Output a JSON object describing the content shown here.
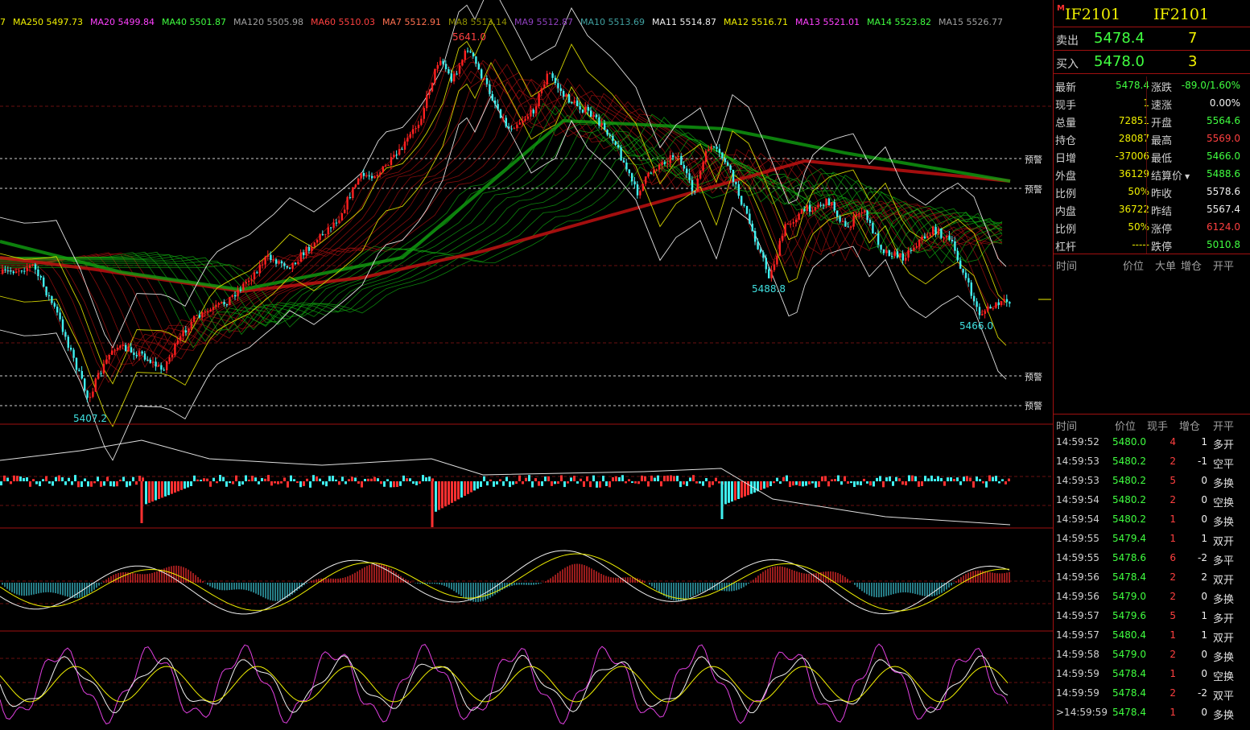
{
  "ma_legend": [
    {
      "label": "7",
      "color": "#f0f000"
    },
    {
      "label": "MA250 5497.73",
      "color": "#f0f000"
    },
    {
      "label": "MA20 5499.84",
      "color": "#ff40ff"
    },
    {
      "label": "MA40 5501.87",
      "color": "#40ff40"
    },
    {
      "label": "MA120 5505.98",
      "color": "#a0a0a0"
    },
    {
      "label": "MA60 5510.03",
      "color": "#ff4040"
    },
    {
      "label": "MA7 5512.91",
      "color": "#ff7050"
    },
    {
      "label": "MA8 5513.14",
      "color": "#909000"
    },
    {
      "label": "MA9 5512.87",
      "color": "#9040c0"
    },
    {
      "label": "MA10 5513.69",
      "color": "#40a0a0"
    },
    {
      "label": "MA11 5514.87",
      "color": "#f0f0f0"
    },
    {
      "label": "MA12 5516.71",
      "color": "#f0f000"
    },
    {
      "label": "MA13 5521.01",
      "color": "#ff40ff"
    },
    {
      "label": "MA14 5523.82",
      "color": "#40ff40"
    },
    {
      "label": "MA15 5526.77",
      "color": "#a0a0a0"
    }
  ],
  "price_labels": {
    "high": "5641.0",
    "low_left": "5407.2",
    "mid_low": "5488.8",
    "right_low": "5466.0"
  },
  "alerts": [
    "预警",
    "预警",
    "预警",
    "预警"
  ],
  "panel": {
    "badge": "M",
    "code_left": "IF2101",
    "code_right": "IF2101",
    "sell_label": "卖出",
    "sell_price": "5478.4",
    "sell_qty": "7",
    "buy_label": "买入",
    "buy_price": "5478.0",
    "buy_qty": "3",
    "sort_arrow": "▼",
    "stats": [
      {
        "l1": "最新",
        "v1": "5478.4",
        "c1": "#40ff40",
        "l2": "涨跌",
        "v2": "-89.0/1.60%",
        "c2": "#40ff40"
      },
      {
        "l1": "现手",
        "v1": "1",
        "c1": "#f0f000",
        "l2": "速涨",
        "v2": "0.00%",
        "c2": "#f0f0f0"
      },
      {
        "l1": "总量",
        "v1": "72851",
        "c1": "#f0f000",
        "l2": "开盘",
        "v2": "5564.6",
        "c2": "#40ff40"
      },
      {
        "l1": "持仓",
        "v1": "28087",
        "c1": "#f0f000",
        "l2": "最高",
        "v2": "5569.0",
        "c2": "#ff4040"
      },
      {
        "l1": "日增",
        "v1": "-37006",
        "c1": "#f0f000",
        "l2": "最低",
        "v2": "5466.0",
        "c2": "#40ff40"
      },
      {
        "l1": "外盘",
        "v1": "36129",
        "c1": "#f0f000",
        "l2": "结算价",
        "v2": "5488.6",
        "c2": "#40ff40"
      },
      {
        "l1": "比例",
        "v1": "50%",
        "c1": "#f0f000",
        "l2": "昨收",
        "v2": "5578.6",
        "c2": "#f0f0f0"
      },
      {
        "l1": "内盘",
        "v1": "36722",
        "c1": "#f0f000",
        "l2": "昨结",
        "v2": "5567.4",
        "c2": "#f0f0f0"
      },
      {
        "l1": "比例",
        "v1": "50%",
        "c1": "#f0f000",
        "l2": "涨停",
        "v2": "6124.0",
        "c2": "#ff4040"
      },
      {
        "l1": "杠杆",
        "v1": "-----",
        "c1": "#f0f000",
        "l2": "跌停",
        "v2": "5010.8",
        "c2": "#40ff40"
      }
    ],
    "big_header": [
      "时间",
      "价位",
      "大单",
      "增仓",
      "开平"
    ],
    "tick_header": [
      "时间",
      "价位",
      "现手",
      "增仓",
      "开平"
    ],
    "ticks": [
      {
        "time": "14:59:52",
        "price": "5480.0",
        "vol": "4",
        "oi": "1",
        "type": "多开"
      },
      {
        "time": "14:59:53",
        "price": "5480.2",
        "vol": "2",
        "oi": "-1",
        "type": "空平"
      },
      {
        "time": "14:59:53",
        "price": "5480.2",
        "vol": "5",
        "oi": "0",
        "type": "多换"
      },
      {
        "time": "14:59:54",
        "price": "5480.2",
        "vol": "2",
        "oi": "0",
        "type": "空换"
      },
      {
        "time": "14:59:54",
        "price": "5480.2",
        "vol": "1",
        "oi": "0",
        "type": "多换"
      },
      {
        "time": "14:59:55",
        "price": "5479.4",
        "vol": "1",
        "oi": "1",
        "type": "双开"
      },
      {
        "time": "14:59:55",
        "price": "5478.6",
        "vol": "6",
        "oi": "-2",
        "type": "多平"
      },
      {
        "time": "14:59:56",
        "price": "5478.4",
        "vol": "2",
        "oi": "2",
        "type": "双开"
      },
      {
        "time": "14:59:56",
        "price": "5479.0",
        "vol": "2",
        "oi": "0",
        "type": "多换"
      },
      {
        "time": "14:59:57",
        "price": "5479.6",
        "vol": "5",
        "oi": "1",
        "type": "多开"
      },
      {
        "time": "14:59:57",
        "price": "5480.4",
        "vol": "1",
        "oi": "1",
        "type": "双开"
      },
      {
        "time": "14:59:58",
        "price": "5479.0",
        "vol": "2",
        "oi": "0",
        "type": "多换"
      },
      {
        "time": "14:59:59",
        "price": "5478.4",
        "vol": "1",
        "oi": "0",
        "type": "空换"
      },
      {
        "time": "14:59:59",
        "price": "5478.4",
        "vol": "2",
        "oi": "-2",
        "type": "双平"
      },
      {
        "time": ">14:59:59",
        "price": "5478.4",
        "vol": "1",
        "oi": "0",
        "type": "多换"
      }
    ]
  }
}
